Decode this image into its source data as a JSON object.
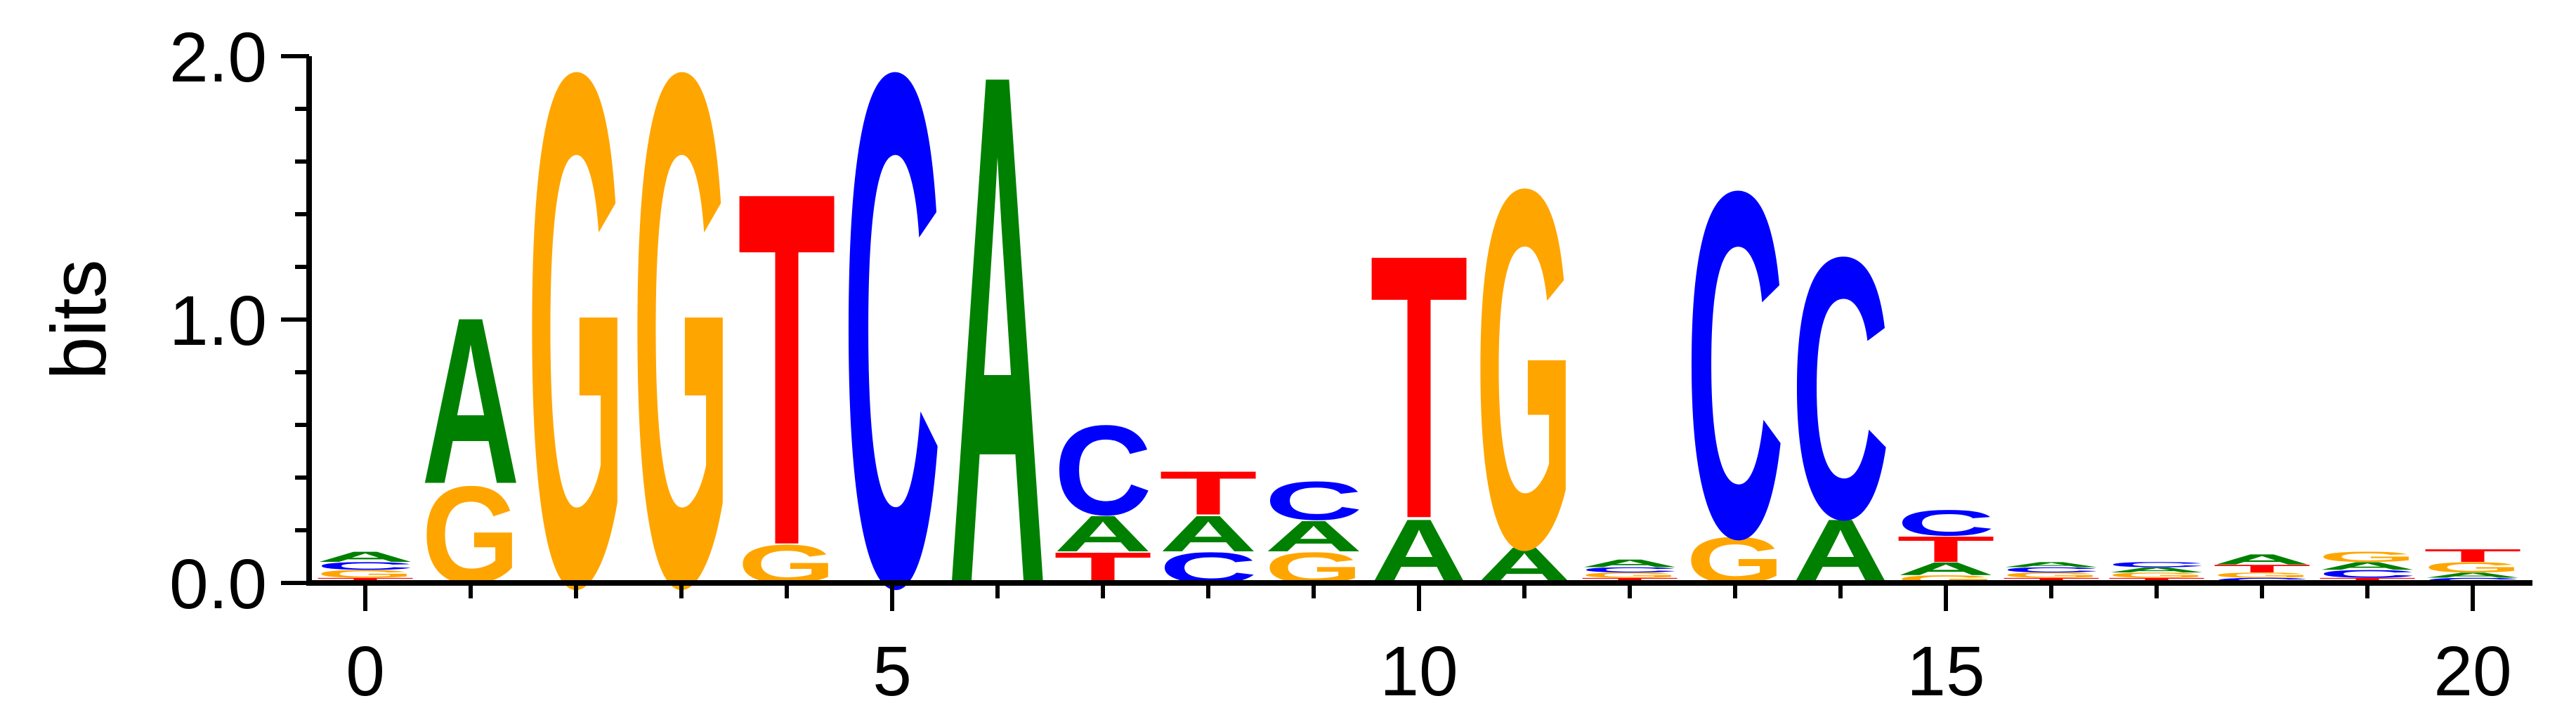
{
  "chart_data": {
    "type": "sequence-logo",
    "title": "",
    "xlabel": "",
    "ylabel": "bits",
    "ylim": [
      0,
      2
    ],
    "xlim": [
      -0.5,
      20.5
    ],
    "x_ticks": [
      "0",
      "5",
      "10",
      "15",
      "20"
    ],
    "y_ticks": [
      "0.0",
      "1.0",
      "2.0"
    ],
    "colors": {
      "A": "#008000",
      "C": "#0000ff",
      "G": "#ffa500",
      "T": "#ff0000"
    },
    "positions": [
      {
        "pos": 0,
        "stack": [
          [
            "T",
            0.02
          ],
          [
            "G",
            0.03
          ],
          [
            "C",
            0.03
          ],
          [
            "A",
            0.04
          ]
        ]
      },
      {
        "pos": 1,
        "stack": [
          [
            "G",
            0.38
          ],
          [
            "A",
            0.65
          ]
        ]
      },
      {
        "pos": 2,
        "stack": [
          [
            "G",
            2.0
          ]
        ]
      },
      {
        "pos": 3,
        "stack": [
          [
            "G",
            2.0
          ]
        ]
      },
      {
        "pos": 4,
        "stack": [
          [
            "G",
            0.15
          ],
          [
            "T",
            1.38
          ]
        ]
      },
      {
        "pos": 5,
        "stack": [
          [
            "C",
            2.0
          ]
        ]
      },
      {
        "pos": 6,
        "stack": [
          [
            "A",
            2.0
          ]
        ]
      },
      {
        "pos": 7,
        "stack": [
          [
            "T",
            0.12
          ],
          [
            "A",
            0.14
          ],
          [
            "C",
            0.35
          ]
        ]
      },
      {
        "pos": 8,
        "stack": [
          [
            "C",
            0.12
          ],
          [
            "A",
            0.14
          ],
          [
            "T",
            0.17
          ]
        ]
      },
      {
        "pos": 9,
        "stack": [
          [
            "G",
            0.12
          ],
          [
            "A",
            0.12
          ],
          [
            "C",
            0.15
          ]
        ]
      },
      {
        "pos": 10,
        "stack": [
          [
            "A",
            0.25
          ],
          [
            "T",
            1.03
          ]
        ]
      },
      {
        "pos": 11,
        "stack": [
          [
            "A",
            0.14
          ],
          [
            "G",
            1.4
          ]
        ]
      },
      {
        "pos": 12,
        "stack": [
          [
            "T",
            0.02
          ],
          [
            "G",
            0.02
          ],
          [
            "C",
            0.02
          ],
          [
            "A",
            0.03
          ]
        ]
      },
      {
        "pos": 13,
        "stack": [
          [
            "G",
            0.18
          ],
          [
            "C",
            1.35
          ]
        ]
      },
      {
        "pos": 14,
        "stack": [
          [
            "A",
            0.25
          ],
          [
            "C",
            1.02
          ]
        ]
      },
      {
        "pos": 15,
        "stack": [
          [
            "G",
            0.03
          ],
          [
            "A",
            0.05
          ],
          [
            "T",
            0.1
          ],
          [
            "C",
            0.1
          ]
        ]
      },
      {
        "pos": 16,
        "stack": [
          [
            "T",
            0.02
          ],
          [
            "G",
            0.02
          ],
          [
            "C",
            0.02
          ],
          [
            "A",
            0.02
          ]
        ]
      },
      {
        "pos": 17,
        "stack": [
          [
            "T",
            0.02
          ],
          [
            "G",
            0.02
          ],
          [
            "A",
            0.02
          ],
          [
            "C",
            0.02
          ]
        ]
      },
      {
        "pos": 18,
        "stack": [
          [
            "C",
            0.02
          ],
          [
            "G",
            0.02
          ],
          [
            "T",
            0.03
          ],
          [
            "A",
            0.04
          ]
        ]
      },
      {
        "pos": 19,
        "stack": [
          [
            "T",
            0.02
          ],
          [
            "C",
            0.03
          ],
          [
            "A",
            0.03
          ],
          [
            "G",
            0.04
          ]
        ]
      },
      {
        "pos": 20,
        "stack": [
          [
            "C",
            0.02
          ],
          [
            "A",
            0.02
          ],
          [
            "G",
            0.04
          ],
          [
            "T",
            0.05
          ]
        ]
      }
    ]
  }
}
